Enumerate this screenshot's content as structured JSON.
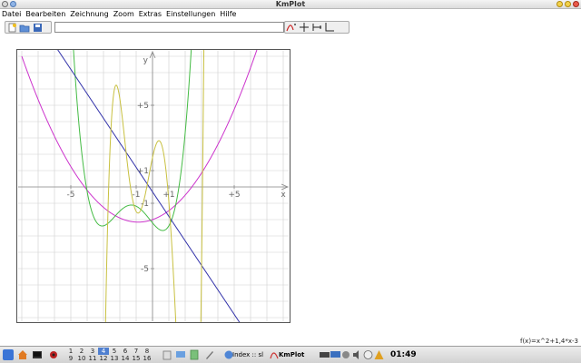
{
  "window": {
    "title": "KmPlot"
  },
  "menu": [
    "Datei",
    "Bearbeiten",
    "Zeichnung",
    "Zoom",
    "Extras",
    "Einstellungen",
    "Hilfe"
  ],
  "toolbar": {
    "function_input_value": ""
  },
  "plot": {
    "axis_labels": {
      "x": "x",
      "y": "y"
    },
    "x_ticks": [
      "-5",
      "-1",
      "+1",
      "+5"
    ],
    "y_ticks": [
      "+5",
      "+1",
      "-1",
      "-5"
    ],
    "xlim": [
      -8,
      8
    ],
    "ylim": [
      -8,
      8
    ],
    "grid": true,
    "curve_colors": [
      "#cc33cc",
      "#44bb44",
      "#3333aa",
      "#c8c040"
    ]
  },
  "status": {
    "function_text": "f(x)=x^2+1,4*x-3"
  },
  "taskbar": {
    "desktops_top": [
      "1",
      "2",
      "3",
      "4",
      "5",
      "6",
      "7",
      "8"
    ],
    "desktops_bottom": [
      "9",
      "10",
      "11",
      "12",
      "13",
      "14",
      "15",
      "16"
    ],
    "active_desktop": "4",
    "tasks": [
      "Index :: sl",
      "KmPlot"
    ],
    "clock": "01:49"
  }
}
